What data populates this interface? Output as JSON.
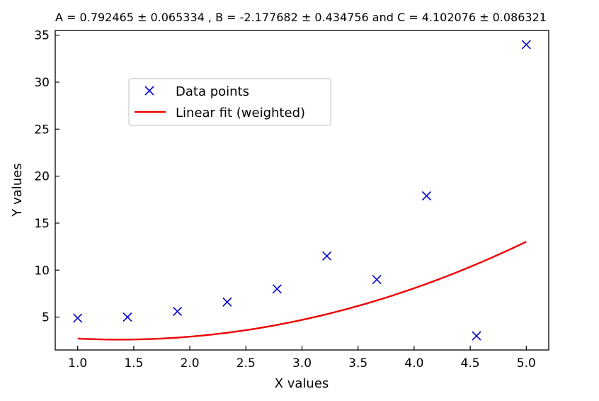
{
  "chart_data": {
    "type": "scatter",
    "title": "A = 0.792465 ± 0.065334 , B = -2.177682 ± 0.434756 and C = 4.102076 ± 0.086321",
    "xlabel": "X values",
    "ylabel": "Y values",
    "xlim": [
      0.8,
      5.2
    ],
    "ylim": [
      1.5,
      35.5
    ],
    "xticks": [
      "1.0",
      "1.5",
      "2.0",
      "2.5",
      "3.0",
      "3.5",
      "4.0",
      "4.5",
      "5.0"
    ],
    "yticks": [
      "5",
      "10",
      "15",
      "20",
      "25",
      "30",
      "35"
    ],
    "grid": false,
    "legend_position": "upper-left",
    "series": [
      {
        "name": "Data points",
        "kind": "scatter",
        "marker": "x",
        "color": "#0000cc",
        "x": [
          1.0,
          1.444,
          1.889,
          2.333,
          2.778,
          3.222,
          3.667,
          4.111,
          4.556,
          5.0
        ],
        "y": [
          4.9,
          5.0,
          5.6,
          6.6,
          8.0,
          11.5,
          9.0,
          17.9,
          3.0,
          34.0
        ]
      },
      {
        "name": "Linear fit (weighted)",
        "kind": "line",
        "color": "#ee0000",
        "model": {
          "A": 0.792465,
          "B": -2.177682,
          "C": 4.102076
        },
        "x_range": [
          1.0,
          5.0
        ]
      }
    ]
  }
}
